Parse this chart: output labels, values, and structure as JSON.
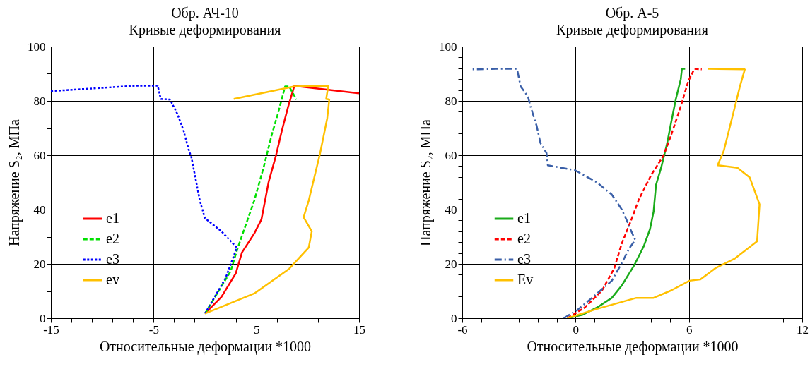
{
  "chart_data": [
    {
      "type": "line",
      "title": "Обр. АЧ-10",
      "subtitle": "Кривые деформирования",
      "xlabel": "Относительные деформации *1000",
      "ylabel": "Напряжение S₂, МПа",
      "xlim": [
        -15,
        15
      ],
      "ylim": [
        0,
        100
      ],
      "xticks": [
        -15,
        {
          "value": -13,
          "label": null
        },
        {
          "value": -11,
          "label": null
        },
        {
          "value": -9,
          "label": null
        },
        {
          "value": -7,
          "label": null
        },
        -5,
        {
          "value": -3,
          "label": null
        },
        {
          "value": -1,
          "label": null
        },
        {
          "value": 1,
          "label": null
        },
        {
          "value": 3,
          "label": null
        },
        5,
        {
          "value": 7,
          "label": null
        },
        {
          "value": 9,
          "label": null
        },
        {
          "value": 11,
          "label": null
        },
        {
          "value": 13,
          "label": null
        },
        15
      ],
      "yticks": [
        0,
        {
          "value": 10,
          "label": null
        },
        20,
        {
          "value": 30,
          "label": null
        },
        40,
        {
          "value": 50,
          "label": null
        },
        60,
        {
          "value": 70,
          "label": null
        },
        80,
        {
          "value": 90,
          "label": null
        },
        100
      ],
      "grid": true,
      "legend": "bottom left",
      "marker": "none",
      "series": [
        {
          "name": "e1",
          "color": "#ff0000",
          "line_style": "solid",
          "x": [
            0,
            1.6,
            3.0,
            3.6,
            4.8,
            5.5,
            6.2,
            6.9,
            7.5,
            8.1,
            8.7,
            15
          ],
          "values": [
            1.7,
            7.8,
            16.5,
            24.2,
            31.2,
            36.4,
            50.2,
            59.7,
            69.3,
            77.9,
            85.5,
            82.8
          ]
        },
        {
          "name": "e2",
          "color": "#00e000",
          "line_style": "dashed",
          "x": [
            0,
            2.5,
            3.2,
            4.8,
            5.7,
            6.5,
            7.1,
            7.8,
            8.2,
            8.9
          ],
          "values": [
            1.7,
            17.3,
            26,
            43.3,
            55.4,
            67.5,
            75.3,
            85.3,
            85.3,
            80.5
          ]
        },
        {
          "name": "e3",
          "color": "#0000ff",
          "line_style": "dotted",
          "x": [
            0,
            2.0,
            3.1,
            1.6,
            0,
            -0.5,
            -0.9,
            -1.3,
            -1.6,
            -2.1,
            -2.7,
            -3.4,
            -4.3,
            -4.6,
            -6.7,
            -15
          ],
          "values": [
            1.7,
            14.7,
            26,
            32,
            36.8,
            43.3,
            51.1,
            58.9,
            62.3,
            69.3,
            75.3,
            80.5,
            80.7,
            85.6,
            85.6,
            83.6
          ]
        },
        {
          "name": "ev",
          "color": "#ffc000",
          "line_style": "solid",
          "x": [
            0,
            4.8,
            8.2,
            10.1,
            10.4,
            9.6,
            10.1,
            11.2,
            11.9,
            12.1,
            11.8,
            12.0,
            8.7,
            2.8
          ],
          "values": [
            1.7,
            9.1,
            18.2,
            26,
            32,
            37.2,
            43.3,
            60.6,
            73.6,
            80.5,
            80.7,
            85.5,
            85.3,
            80.7
          ]
        }
      ]
    },
    {
      "type": "line",
      "title": "Обр. А-5",
      "subtitle": "Кривые деформирования",
      "xlabel": "Относительные деформации *1000",
      "ylabel": "Напряжение S₂, МПа",
      "xlim": [
        -6,
        12
      ],
      "ylim": [
        0,
        100
      ],
      "xticks": [
        -6,
        {
          "value": -5,
          "label": null
        },
        {
          "value": -4,
          "label": null
        },
        {
          "value": -3,
          "label": null
        },
        {
          "value": -2,
          "label": null
        },
        {
          "value": -1,
          "label": null
        },
        0,
        {
          "value": 1,
          "label": null
        },
        {
          "value": 2,
          "label": null
        },
        {
          "value": 3,
          "label": null
        },
        {
          "value": 4,
          "label": null
        },
        {
          "value": 5,
          "label": null
        },
        6,
        {
          "value": 7,
          "label": null
        },
        {
          "value": 8,
          "label": null
        },
        {
          "value": 9,
          "label": null
        },
        {
          "value": 10,
          "label": null
        },
        {
          "value": 11,
          "label": null
        },
        12
      ],
      "yticks": [
        0,
        {
          "value": 4,
          "label": null
        },
        {
          "value": 8,
          "label": null
        },
        {
          "value": 12,
          "label": null
        },
        {
          "value": 16,
          "label": null
        },
        20,
        {
          "value": 24,
          "label": null
        },
        {
          "value": 28,
          "label": null
        },
        {
          "value": 32,
          "label": null
        },
        {
          "value": 36,
          "label": null
        },
        40,
        {
          "value": 44,
          "label": null
        },
        {
          "value": 48,
          "label": null
        },
        {
          "value": 52,
          "label": null
        },
        {
          "value": 56,
          "label": null
        },
        60,
        {
          "value": 64,
          "label": null
        },
        {
          "value": 68,
          "label": null
        },
        {
          "value": 72,
          "label": null
        },
        {
          "value": 76,
          "label": null
        },
        80,
        {
          "value": 84,
          "label": null
        },
        {
          "value": 88,
          "label": null
        },
        {
          "value": 92,
          "label": null
        },
        {
          "value": 96,
          "label": null
        },
        100
      ],
      "grid": true,
      "legend": "bottom left",
      "marker": "none",
      "series": [
        {
          "name": "e1",
          "color": "#1aab1a",
          "line_style": "solid",
          "x": [
            -0.43,
            0.35,
            1.13,
            1.92,
            2.44,
            3.09,
            3.61,
            3.94,
            4.13,
            4.26,
            4.53,
            4.85,
            5.05,
            5.31,
            5.57,
            5.63,
            5.8
          ],
          "values": [
            0,
            1.2,
            3.9,
            7.5,
            12,
            19.3,
            26.5,
            32.8,
            39.2,
            49.1,
            55.4,
            64.5,
            71.7,
            80.7,
            88,
            91.8,
            91.8
          ]
        },
        {
          "name": "e2",
          "color": "#ff0000",
          "line_style": "dashed",
          "x": [
            -0.43,
            0.48,
            1.4,
            2.05,
            2.44,
            2.96,
            3.35,
            4.0,
            4.66,
            5.05,
            5.57,
            5.96,
            6.29,
            6.68
          ],
          "values": [
            0,
            3.9,
            10.2,
            18.4,
            27.4,
            36.4,
            43.7,
            52.7,
            59.9,
            67.2,
            78,
            87.1,
            91.8,
            91.6
          ]
        },
        {
          "name": "e3",
          "color": "#3a5fa8",
          "line_style": "dashdot",
          "x": [
            -0.63,
            0.09,
            0.87,
            1.92,
            2.44,
            2.83,
            3.16,
            2.9,
            2.77,
            2.44,
            1.92,
            1.13,
            -0.04,
            -1.47,
            -1.54,
            -1.86,
            -2.06,
            -2.39,
            -2.52,
            -2.91,
            -3.1,
            -4.21,
            -5.45
          ],
          "values": [
            0,
            3,
            7.5,
            13.8,
            20.2,
            25.6,
            28.8,
            32.8,
            35.1,
            40.1,
            45.5,
            50,
            54.5,
            56.3,
            60.8,
            64.5,
            70.8,
            78,
            81.6,
            85.3,
            91.8,
            91.8,
            91.6
          ]
        },
        {
          "name": "Ev",
          "color": "#ffc000",
          "line_style": "solid",
          "x": [
            -0.43,
            1.13,
            3.22,
            4.13,
            5.05,
            6.03,
            6.61,
            7.4,
            8.44,
            9.61,
            9.74,
            9.22,
            8.57,
            7.52,
            7.85,
            8.44,
            8.7,
            8.96,
            7.0
          ],
          "values": [
            0,
            3.4,
            7.5,
            7.5,
            10.2,
            13.8,
            14.3,
            18.4,
            22,
            28.3,
            41.9,
            51.8,
            55.4,
            56.3,
            61.7,
            78,
            85.3,
            91.6,
            91.8
          ]
        }
      ]
    }
  ]
}
